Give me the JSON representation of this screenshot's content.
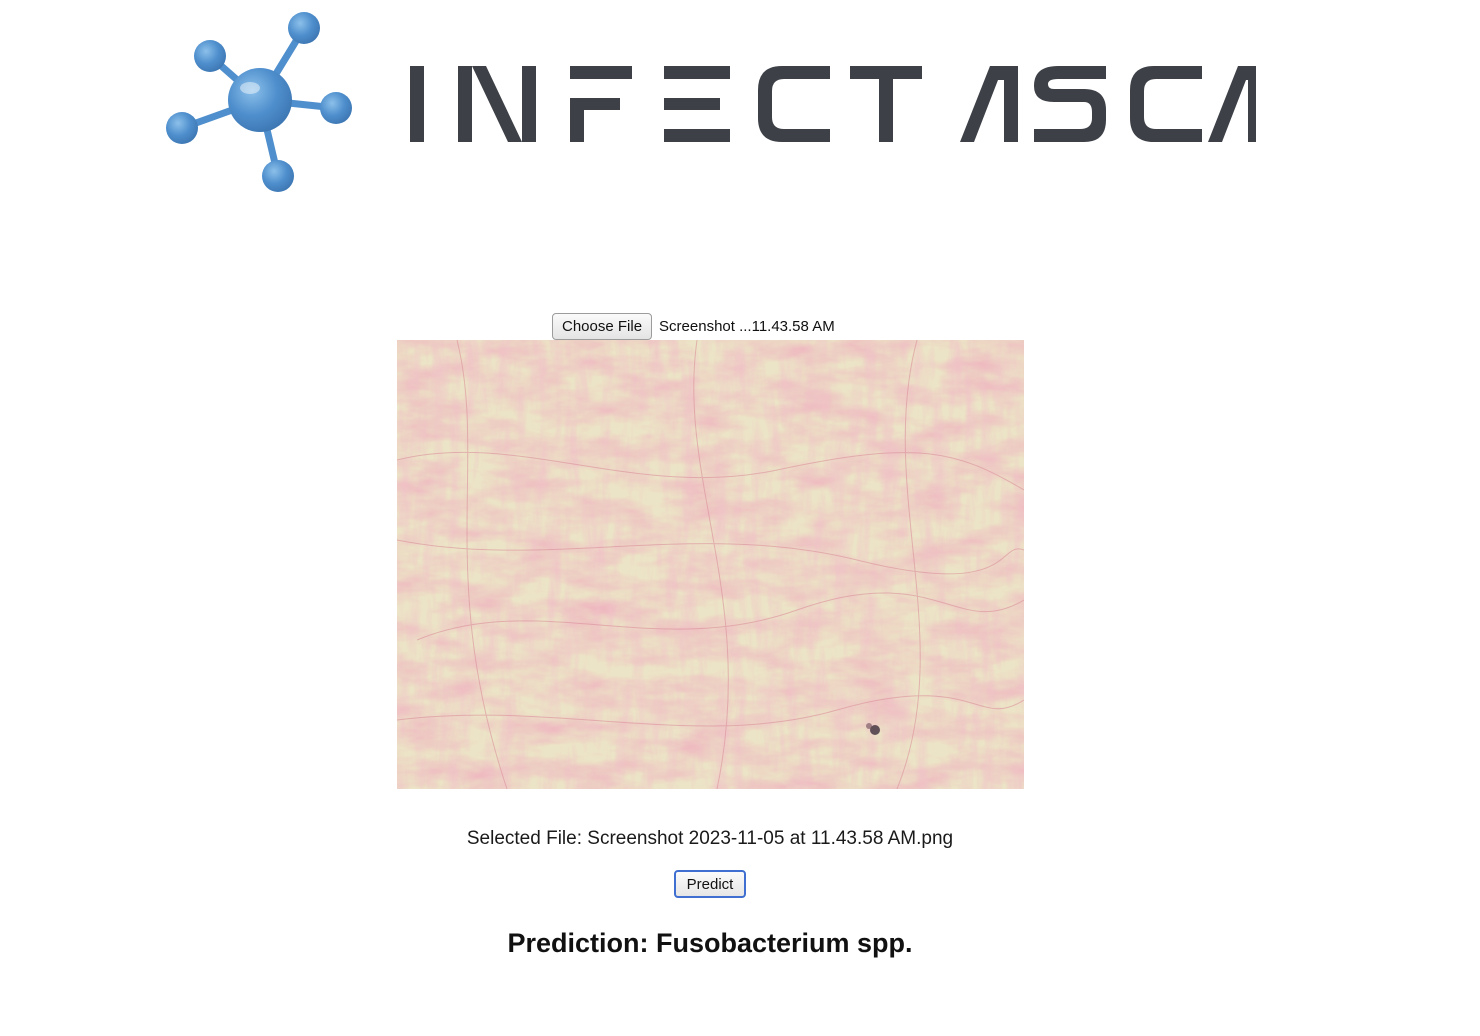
{
  "header": {
    "brand_name": "INFECTASCAN",
    "logo_color": "#4f8fcd",
    "wordmark_color": "#3d4147"
  },
  "upload": {
    "choose_button_label": "Choose File",
    "file_name_display": "Screenshot ...11.43.58 AM"
  },
  "preview": {
    "icon": "microscopy-image"
  },
  "selected_file": {
    "text": "Selected File: Screenshot 2023-11-05 at 11.43.58 AM.png"
  },
  "actions": {
    "predict_label": "Predict"
  },
  "result": {
    "text": "Prediction: Fusobacterium spp."
  }
}
